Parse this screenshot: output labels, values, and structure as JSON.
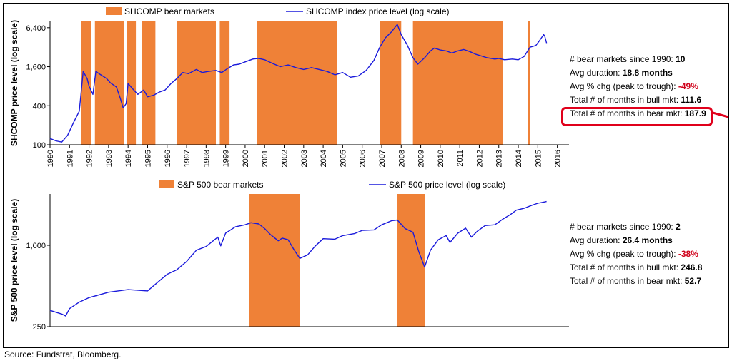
{
  "source_note": "Source: Fundstrat, Bloomberg.",
  "colors": {
    "bear": "#ef8137",
    "line": "#1a1adb",
    "highlight": "#e0001b",
    "negative": "#d0021b"
  },
  "chart_data": [
    {
      "type": "line",
      "legend": {
        "bear_label": "SHCOMP bear markets",
        "line_label": "SHCOMP index price level (log scale)",
        "placement": "top"
      },
      "ylabel": "SHCOMP price level (log scale)",
      "y_scale": "log",
      "ylim": [
        100,
        8000
      ],
      "yticks": [
        100,
        400,
        1600,
        6400
      ],
      "ytick_labels": [
        "100",
        "400",
        "1,600",
        "6,400"
      ],
      "xlim": [
        1990,
        2016.6
      ],
      "xtick_labels": [
        "1990",
        "1991",
        "1992",
        "1993",
        "1994",
        "1995",
        "1996",
        "1997",
        "1998",
        "1999",
        "2000",
        "2001",
        "2002",
        "2003",
        "2004",
        "2005",
        "2006",
        "2007",
        "2008",
        "2009",
        "2010",
        "2011",
        "2012",
        "2013",
        "2014",
        "2015",
        "2016"
      ],
      "bear_markets": [
        [
          1991.6,
          1992.1
        ],
        [
          1992.3,
          1993.8
        ],
        [
          1993.95,
          1994.4
        ],
        [
          1994.7,
          1995.4
        ],
        [
          1996.5,
          1998.5
        ],
        [
          1998.7,
          1999.2
        ],
        [
          2000.6,
          2004.7
        ],
        [
          2006.9,
          2008.0
        ],
        [
          2008.6,
          2013.2
        ],
        [
          2014.5,
          2014.6
        ]
      ],
      "series": [
        {
          "values": [
            [
              1990.0,
              125
            ],
            [
              1990.3,
              115
            ],
            [
              1990.6,
              110
            ],
            [
              1990.9,
              140
            ],
            [
              1991.2,
              220
            ],
            [
              1991.5,
              330
            ],
            [
              1991.7,
              1350
            ],
            [
              1991.9,
              1050
            ],
            [
              1992.0,
              800
            ],
            [
              1992.2,
              600
            ],
            [
              1992.35,
              1350
            ],
            [
              1992.6,
              1200
            ],
            [
              1992.9,
              1050
            ],
            [
              1993.1,
              900
            ],
            [
              1993.4,
              780
            ],
            [
              1993.6,
              520
            ],
            [
              1993.75,
              370
            ],
            [
              1993.9,
              430
            ],
            [
              1994.0,
              880
            ],
            [
              1994.2,
              750
            ],
            [
              1994.5,
              600
            ],
            [
              1994.8,
              700
            ],
            [
              1995.0,
              550
            ],
            [
              1995.3,
              580
            ],
            [
              1995.6,
              650
            ],
            [
              1995.9,
              700
            ],
            [
              1996.2,
              880
            ],
            [
              1996.5,
              1050
            ],
            [
              1996.8,
              1300
            ],
            [
              1997.1,
              1250
            ],
            [
              1997.5,
              1450
            ],
            [
              1997.8,
              1300
            ],
            [
              1998.1,
              1350
            ],
            [
              1998.5,
              1400
            ],
            [
              1998.8,
              1300
            ],
            [
              1999.1,
              1500
            ],
            [
              1999.4,
              1700
            ],
            [
              1999.7,
              1750
            ],
            [
              2000.0,
              1900
            ],
            [
              2000.4,
              2100
            ],
            [
              2000.7,
              2150
            ],
            [
              2001.0,
              2050
            ],
            [
              2001.4,
              1800
            ],
            [
              2001.8,
              1600
            ],
            [
              2002.2,
              1700
            ],
            [
              2002.6,
              1550
            ],
            [
              2003.0,
              1450
            ],
            [
              2003.4,
              1550
            ],
            [
              2003.8,
              1450
            ],
            [
              2004.2,
              1350
            ],
            [
              2004.6,
              1200
            ],
            [
              2005.0,
              1300
            ],
            [
              2005.4,
              1100
            ],
            [
              2005.8,
              1150
            ],
            [
              2006.2,
              1400
            ],
            [
              2006.6,
              2000
            ],
            [
              2006.9,
              3200
            ],
            [
              2007.2,
              4500
            ],
            [
              2007.5,
              5500
            ],
            [
              2007.8,
              7200
            ],
            [
              2008.0,
              5000
            ],
            [
              2008.3,
              3500
            ],
            [
              2008.6,
              2200
            ],
            [
              2008.85,
              1750
            ],
            [
              2009.2,
              2200
            ],
            [
              2009.5,
              2800
            ],
            [
              2009.7,
              3100
            ],
            [
              2010.0,
              2900
            ],
            [
              2010.3,
              2800
            ],
            [
              2010.6,
              2600
            ],
            [
              2010.9,
              2800
            ],
            [
              2011.2,
              2950
            ],
            [
              2011.5,
              2750
            ],
            [
              2011.8,
              2500
            ],
            [
              2012.1,
              2350
            ],
            [
              2012.4,
              2200
            ],
            [
              2012.8,
              2100
            ],
            [
              2013.0,
              2150
            ],
            [
              2013.3,
              2050
            ],
            [
              2013.7,
              2100
            ],
            [
              2014.0,
              2050
            ],
            [
              2014.3,
              2300
            ],
            [
              2014.6,
              3200
            ],
            [
              2014.9,
              3400
            ],
            [
              2015.1,
              4100
            ],
            [
              2015.3,
              5000
            ],
            [
              2015.35,
              4800
            ],
            [
              2015.45,
              3700
            ]
          ]
        }
      ],
      "stats": [
        {
          "label": "# bear markets since 1990: ",
          "value": "10",
          "negative": false
        },
        {
          "label": "Avg duration: ",
          "value": "18.8 months",
          "negative": false
        },
        {
          "label": "Avg % chg (peak to trough): ",
          "value": "-49%",
          "negative": true
        },
        {
          "label": "Total # of months in bull mkt: ",
          "value": "111.6",
          "negative": false
        },
        {
          "label": "Total # of months in bear mkt: ",
          "value": "187.9",
          "negative": false
        }
      ]
    },
    {
      "type": "line",
      "legend": {
        "bear_label": "S&P 500 bear markets",
        "line_label": "S&P 500 price level (log scale)",
        "placement": "top"
      },
      "ylabel": "S&P 500 price level (log scale)",
      "y_scale": "log",
      "ylim": [
        250,
        2400
      ],
      "yticks": [
        250,
        1000
      ],
      "ytick_labels": [
        "250",
        "1,000"
      ],
      "xlim": [
        1990,
        2016.6
      ],
      "bear_markets": [
        [
          2000.2,
          2002.8
        ],
        [
          2007.8,
          2009.2
        ]
      ],
      "series": [
        {
          "values": [
            [
              1990.0,
              330
            ],
            [
              1990.6,
              310
            ],
            [
              1990.8,
              300
            ],
            [
              1991.0,
              340
            ],
            [
              1991.5,
              380
            ],
            [
              1992.0,
              410
            ],
            [
              1993.0,
              450
            ],
            [
              1994.0,
              470
            ],
            [
              1995.0,
              460
            ],
            [
              1995.5,
              530
            ],
            [
              1996.0,
              610
            ],
            [
              1996.5,
              660
            ],
            [
              1997.0,
              760
            ],
            [
              1997.5,
              920
            ],
            [
              1998.0,
              980
            ],
            [
              1998.6,
              1150
            ],
            [
              1998.75,
              990
            ],
            [
              1999.0,
              1230
            ],
            [
              1999.5,
              1370
            ],
            [
              2000.0,
              1420
            ],
            [
              2000.3,
              1470
            ],
            [
              2000.7,
              1440
            ],
            [
              2001.0,
              1330
            ],
            [
              2001.3,
              1200
            ],
            [
              2001.7,
              1080
            ],
            [
              2001.9,
              1130
            ],
            [
              2002.2,
              1100
            ],
            [
              2002.5,
              930
            ],
            [
              2002.8,
              800
            ],
            [
              2003.2,
              850
            ],
            [
              2003.6,
              990
            ],
            [
              2004.0,
              1120
            ],
            [
              2004.6,
              1110
            ],
            [
              2005.0,
              1180
            ],
            [
              2005.6,
              1220
            ],
            [
              2006.0,
              1290
            ],
            [
              2006.6,
              1300
            ],
            [
              2007.0,
              1420
            ],
            [
              2007.5,
              1520
            ],
            [
              2007.8,
              1540
            ],
            [
              2008.2,
              1330
            ],
            [
              2008.6,
              1250
            ],
            [
              2008.9,
              900
            ],
            [
              2009.2,
              690
            ],
            [
              2009.5,
              920
            ],
            [
              2009.9,
              1100
            ],
            [
              2010.3,
              1180
            ],
            [
              2010.5,
              1050
            ],
            [
              2010.9,
              1230
            ],
            [
              2011.3,
              1340
            ],
            [
              2011.6,
              1150
            ],
            [
              2011.9,
              1270
            ],
            [
              2012.3,
              1400
            ],
            [
              2012.8,
              1420
            ],
            [
              2013.2,
              1560
            ],
            [
              2013.6,
              1690
            ],
            [
              2013.9,
              1820
            ],
            [
              2014.3,
              1880
            ],
            [
              2014.7,
              1980
            ],
            [
              2015.0,
              2050
            ],
            [
              2015.3,
              2090
            ],
            [
              2015.45,
              2110
            ]
          ]
        }
      ],
      "stats": [
        {
          "label": "# bear markets since 1990: ",
          "value": "2",
          "negative": false
        },
        {
          "label": "Avg duration: ",
          "value": "26.4 months",
          "negative": false
        },
        {
          "label": "Avg % chg (peak to trough): ",
          "value": "-38%",
          "negative": true
        },
        {
          "label": "Total # of months in bull mkt: ",
          "value": "246.8",
          "negative": false
        },
        {
          "label": "Total # of months in bear mkt: ",
          "value": "52.7",
          "negative": false
        }
      ]
    }
  ]
}
